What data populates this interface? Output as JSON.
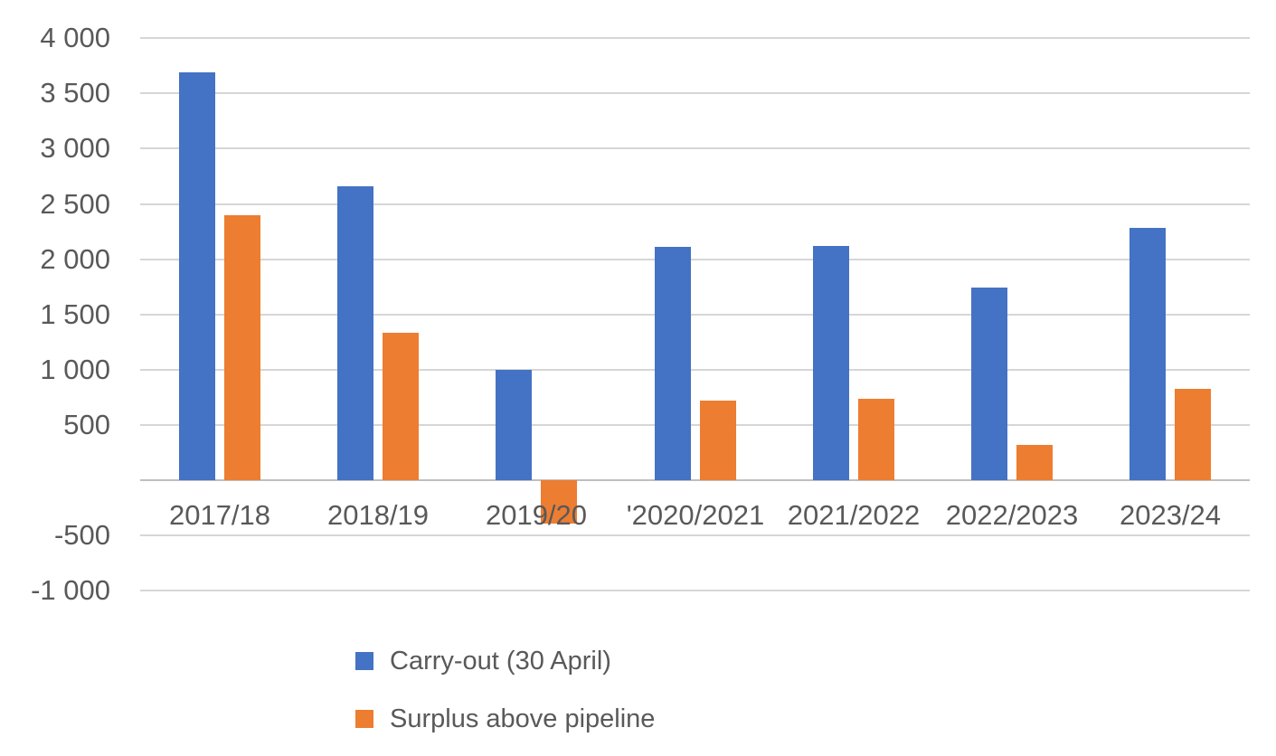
{
  "chart_data": {
    "type": "bar",
    "title": "",
    "xlabel": "",
    "ylabel": "",
    "categories": [
      "2017/18",
      "2018/19",
      "2019/20",
      "'2020/2021",
      "2021/2022",
      "2022/2023",
      "2023/24"
    ],
    "series": [
      {
        "name": "Carry-out (30 April)",
        "color": "#4472C4",
        "values": [
          3690,
          2660,
          1000,
          2110,
          2120,
          1740,
          2280
        ]
      },
      {
        "name": "Surplus above pipeline",
        "color": "#ED7D31",
        "values": [
          2400,
          1330,
          -390,
          720,
          740,
          320,
          830
        ]
      }
    ],
    "ylim": [
      -1000,
      4000
    ],
    "ytick_step": 500,
    "yticks": [
      {
        "value": 4000,
        "label": "4 000"
      },
      {
        "value": 3500,
        "label": "3 500"
      },
      {
        "value": 3000,
        "label": "3 000"
      },
      {
        "value": 2500,
        "label": "2 500"
      },
      {
        "value": 2000,
        "label": "2 000"
      },
      {
        "value": 1500,
        "label": "1 500"
      },
      {
        "value": 1000,
        "label": "1 000"
      },
      {
        "value": 500,
        "label": "500"
      },
      {
        "value": 0,
        "label": ""
      },
      {
        "value": -500,
        "label": "-500"
      },
      {
        "value": -1000,
        "label": "-1 000"
      }
    ],
    "grid": true,
    "legend_position": "bottom-left",
    "colors": {
      "background": "#FFFFFF",
      "gridline": "#D6D6D6",
      "zero_axis_line": "#BFBFBF",
      "text": "#595959"
    }
  }
}
